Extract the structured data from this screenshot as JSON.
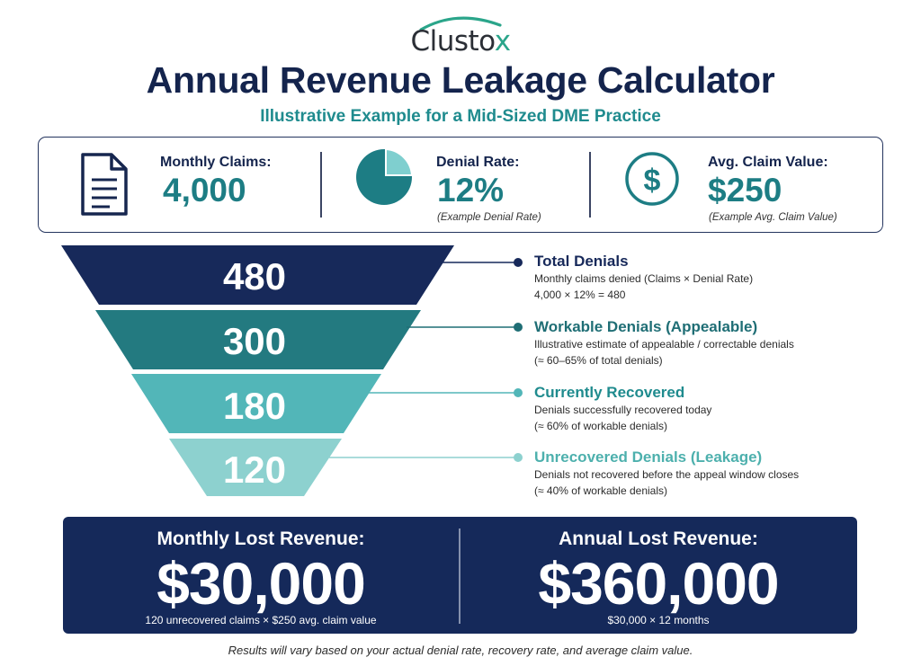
{
  "brand": {
    "logo_main": "Clusto",
    "logo_x": "x"
  },
  "header": {
    "title": "Annual Revenue Leakage Calculator",
    "subtitle": "Illustrative Example for a Mid-Sized DME Practice"
  },
  "stats": [
    {
      "label": "Monthly Claims:",
      "value": "4,000",
      "note": "",
      "icon": "document-icon"
    },
    {
      "label": "Denial Rate:",
      "value": "12%",
      "note": "(Example Denial Rate)",
      "icon": "pie-chart-icon",
      "fraction": 0.12
    },
    {
      "label": "Avg. Claim Value:",
      "value": "$250",
      "note": "(Example Avg. Claim Value)",
      "icon": "dollar-circle-icon"
    }
  ],
  "funnel": [
    {
      "value": "480",
      "title": "Total Denials",
      "lines": [
        "Monthly claims denied (Claims × Denial Rate)",
        "4,000 × 12% = 480"
      ],
      "color": "#17295a",
      "title_color": "#17295a"
    },
    {
      "value": "300",
      "title": "Workable Denials (Appealable)",
      "lines": [
        "Illustrative estimate of appealable / correctable denials",
        "(≈ 60–65% of total denials)"
      ],
      "color": "#237a80",
      "title_color": "#1f6e75"
    },
    {
      "value": "180",
      "title": "Currently Recovered",
      "lines": [
        "Denials successfully recovered today",
        "(≈ 60% of workable denials)"
      ],
      "color": "#52b6b8",
      "title_color": "#1f8b8e"
    },
    {
      "value": "120",
      "title": "Unrecovered Denials (Leakage)",
      "lines": [
        "Denials not recovered before the appeal window closes",
        "(≈ 40% of workable denials)"
      ],
      "color": "#8dd1cf",
      "title_color": "#4db0ad"
    }
  ],
  "summary": [
    {
      "label": "Monthly Lost Revenue:",
      "value": "$30,000",
      "note": "120 unrecovered claims × $250 avg. claim value"
    },
    {
      "label": "Annual Lost Revenue:",
      "value": "$360,000",
      "note": "$30,000 × 12 months"
    }
  ],
  "footnote": "Results will vary based on your actual denial rate, recovery rate, and average claim value.",
  "colors": {
    "navy": "#15295a",
    "teal": "#1d7d84",
    "accent_green": "#2aa58a"
  }
}
